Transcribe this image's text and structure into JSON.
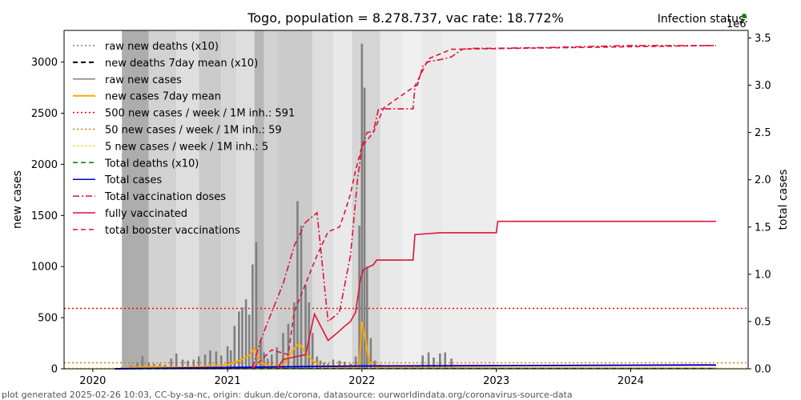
{
  "header": {
    "title": "Togo, population = 8.278.737, vac rate: 18.772%",
    "status_label": "Infection status:",
    "status_color": "#1a7f1a"
  },
  "footer": {
    "text": "plot generated 2025-02-26 10:03, CC-by-sa-nc, origin: dukun.de/corona, datasource: ourworldindata.org/coronavirus-source-data"
  },
  "chart_data": {
    "type": "line",
    "x_axis": {
      "type": "date",
      "ticks": [
        "2020",
        "2021",
        "2022",
        "2023",
        "2024"
      ],
      "xlim": [
        "2019-10-15",
        "2024-11-15"
      ]
    },
    "y_left": {
      "label": "new cases",
      "ylim": [
        0,
        3310
      ],
      "ticks": [
        0,
        500,
        1000,
        1500,
        2000,
        2500,
        3000
      ]
    },
    "y_right": {
      "label": "total cases",
      "multiplier": "1e6",
      "ylim": [
        0,
        3.58
      ],
      "ticks": [
        "0.0",
        "0.5",
        "1.0",
        "1.5",
        "2.0",
        "2.5",
        "3.0",
        "3.5"
      ]
    },
    "legend": {
      "position": "top-left",
      "items": [
        {
          "label": "raw new deaths (x10)",
          "color": "#808080",
          "dash": "dotted"
        },
        {
          "label": "new deaths 7day mean (x10)",
          "color": "#000000",
          "dash": "dashed"
        },
        {
          "label": "raw new cases",
          "color": "#808080",
          "dash": "solid"
        },
        {
          "label": "new cases 7day mean",
          "color": "#ffa500",
          "dash": "solid"
        },
        {
          "label": "500 new cases / week / 1M inh.: 591",
          "color": "#ff0000",
          "dash": "dotted"
        },
        {
          "label": "50 new cases / week / 1M inh.: 59",
          "color": "#e07b00",
          "dash": "dotted"
        },
        {
          "label": "5 new cases / week / 1M inh.: 5",
          "color": "#ffd700",
          "dash": "dotted"
        },
        {
          "label": "Total deaths (x10)",
          "color": "#008000",
          "dash": "dashed"
        },
        {
          "label": "Total cases",
          "color": "#0000cd",
          "dash": "solid"
        },
        {
          "label": "Total vaccination doses",
          "color": "#dc143c",
          "dash": "dashdot"
        },
        {
          "label": "fully vaccinated",
          "color": "#dc143c",
          "dash": "solid"
        },
        {
          "label": "total booster vaccinations",
          "color": "#dc143c",
          "dash": "dashed"
        }
      ]
    },
    "thresholds": [
      591,
      59,
      5
    ],
    "stringency_bands": [
      {
        "start": "2020-03-20",
        "end": "2020-06-01",
        "level": 0.55
      },
      {
        "start": "2020-06-01",
        "end": "2020-08-15",
        "level": 0.3
      },
      {
        "start": "2020-08-15",
        "end": "2020-10-15",
        "level": 0.22
      },
      {
        "start": "2020-10-15",
        "end": "2020-12-15",
        "level": 0.35
      },
      {
        "start": "2020-12-15",
        "end": "2021-01-25",
        "level": 0.28
      },
      {
        "start": "2021-01-25",
        "end": "2021-03-15",
        "level": 0.22
      },
      {
        "start": "2021-03-15",
        "end": "2021-04-10",
        "level": 0.48
      },
      {
        "start": "2021-04-10",
        "end": "2021-05-15",
        "level": 0.3
      },
      {
        "start": "2021-05-15",
        "end": "2021-08-20",
        "level": 0.35
      },
      {
        "start": "2021-08-20",
        "end": "2021-10-15",
        "level": 0.22
      },
      {
        "start": "2021-10-15",
        "end": "2021-12-05",
        "level": 0.15
      },
      {
        "start": "2021-12-05",
        "end": "2022-02-20",
        "level": 0.28
      },
      {
        "start": "2022-02-20",
        "end": "2022-04-20",
        "level": 0.15
      },
      {
        "start": "2022-04-20",
        "end": "2022-06-10",
        "level": 0.1
      },
      {
        "start": "2022-06-10",
        "end": "2022-08-10",
        "level": 0.15
      },
      {
        "start": "2022-08-10",
        "end": "2023-01-01",
        "level": 0.12
      }
    ],
    "series": {
      "raw_new_cases": {
        "x": [
          "2020-03-20",
          "2020-04-15",
          "2020-05-01",
          "2020-05-15",
          "2020-06-01",
          "2020-06-15",
          "2020-07-01",
          "2020-07-15",
          "2020-08-01",
          "2020-08-15",
          "2020-09-01",
          "2020-09-15",
          "2020-10-01",
          "2020-10-15",
          "2020-11-01",
          "2020-11-15",
          "2020-12-01",
          "2020-12-15",
          "2021-01-01",
          "2021-01-10",
          "2021-01-20",
          "2021-02-01",
          "2021-02-10",
          "2021-02-20",
          "2021-03-01",
          "2021-03-10",
          "2021-03-20",
          "2021-04-01",
          "2021-04-10",
          "2021-04-20",
          "2021-05-01",
          "2021-05-15",
          "2021-06-01",
          "2021-06-15",
          "2021-07-01",
          "2021-07-10",
          "2021-07-20",
          "2021-08-01",
          "2021-08-10",
          "2021-08-20",
          "2021-09-01",
          "2021-09-10",
          "2021-09-20",
          "2021-10-01",
          "2021-10-15",
          "2021-11-01",
          "2021-11-15",
          "2021-12-01",
          "2021-12-15",
          "2021-12-25",
          "2022-01-01",
          "2022-01-08",
          "2022-01-15",
          "2022-01-25",
          "2022-02-05",
          "2022-02-20",
          "2022-03-15",
          "2022-04-15",
          "2022-05-15",
          "2022-06-01",
          "2022-06-15",
          "2022-07-01",
          "2022-07-15",
          "2022-08-01",
          "2022-08-15",
          "2022-09-01",
          "2022-10-01"
        ],
        "y": [
          15,
          30,
          60,
          125,
          60,
          50,
          50,
          40,
          100,
          150,
          90,
          80,
          90,
          120,
          140,
          180,
          170,
          130,
          220,
          180,
          420,
          560,
          600,
          680,
          530,
          1020,
          1240,
          280,
          160,
          100,
          140,
          210,
          350,
          440,
          650,
          1640,
          1400,
          820,
          650,
          350,
          120,
          80,
          60,
          50,
          90,
          80,
          70,
          50,
          120,
          1400,
          3180,
          2750,
          1000,
          300,
          80,
          40,
          30,
          20,
          20,
          30,
          130,
          160,
          110,
          150,
          160,
          100,
          10
        ]
      },
      "new_cases_7day_mean": {
        "x": [
          "2020-03-20",
          "2020-06-01",
          "2020-09-01",
          "2020-12-01",
          "2021-01-01",
          "2021-02-01",
          "2021-03-01",
          "2021-03-15",
          "2021-04-01",
          "2021-05-01",
          "2021-06-01",
          "2021-07-01",
          "2021-07-15",
          "2021-08-01",
          "2021-08-20",
          "2021-09-15",
          "2021-12-01",
          "2021-12-25",
          "2022-01-01",
          "2022-01-10",
          "2022-01-20",
          "2022-02-01",
          "2022-03-01",
          "2024-08-20"
        ],
        "y": [
          5,
          20,
          15,
          30,
          40,
          80,
          130,
          200,
          60,
          20,
          40,
          200,
          250,
          150,
          80,
          20,
          10,
          20,
          460,
          300,
          80,
          20,
          10,
          5
        ]
      },
      "total_vaccination_doses": {
        "x": [
          "2021-03-10",
          "2021-04-01",
          "2021-05-01",
          "2021-06-01",
          "2021-07-01",
          "2021-08-01",
          "2021-09-01",
          "2021-10-01",
          "2021-11-01",
          "2021-12-01",
          "2021-12-20",
          "2022-01-01",
          "2022-01-15",
          "2022-02-01",
          "2022-02-15",
          "2022-03-01",
          "2022-04-01",
          "2022-05-01",
          "2022-05-20",
          "2022-05-25",
          "2022-06-01",
          "2022-06-15",
          "2022-07-01",
          "2022-08-01",
          "2022-09-01",
          "2022-10-01",
          "2022-11-01",
          "2023-01-01",
          "2023-06-01",
          "2024-01-01",
          "2024-08-20"
        ],
        "y": [
          0.01,
          0.3,
          0.6,
          0.9,
          1.3,
          1.55,
          1.65,
          0.5,
          0.6,
          1.2,
          2.0,
          2.35,
          2.5,
          2.51,
          2.75,
          2.75,
          2.75,
          2.75,
          2.75,
          2.99,
          3.0,
          3.2,
          3.25,
          3.27,
          3.3,
          3.38,
          3.39,
          3.39,
          3.4,
          3.42,
          3.42
        ]
      },
      "total_booster_vaccinations": {
        "x": [
          "2021-03-10",
          "2021-05-01",
          "2021-06-15",
          "2021-07-01",
          "2021-08-01",
          "2021-09-01",
          "2021-10-01",
          "2021-11-01",
          "2021-11-15",
          "2021-12-01",
          "2021-12-15",
          "2022-01-01",
          "2022-02-01",
          "2022-03-01",
          "2022-05-25",
          "2022-07-01",
          "2022-09-01",
          "2024-08-20"
        ],
        "y": [
          0.0,
          0.2,
          0.15,
          0.6,
          0.9,
          1.2,
          1.45,
          1.5,
          1.65,
          1.85,
          2.1,
          2.35,
          2.5,
          2.76,
          2.99,
          3.28,
          3.38,
          3.42
        ]
      },
      "fully_vaccinated": {
        "x": [
          "2021-05-15",
          "2021-06-01",
          "2021-08-01",
          "2021-08-25",
          "2021-10-01",
          "2021-11-01",
          "2021-11-15",
          "2021-12-01",
          "2021-12-15",
          "2021-12-28",
          "2022-01-05",
          "2022-02-01",
          "2022-02-10",
          "2022-05-20",
          "2022-05-25",
          "2022-07-01",
          "2022-08-01",
          "2023-01-01",
          "2023-01-05",
          "2024-08-20"
        ],
        "y": [
          0.0,
          0.1,
          0.15,
          0.58,
          0.3,
          0.4,
          0.45,
          0.5,
          0.6,
          0.95,
          1.05,
          1.1,
          1.15,
          1.15,
          1.42,
          1.43,
          1.44,
          1.44,
          1.56,
          1.56
        ]
      },
      "total_cases": {
        "x": [
          "2020-03-01",
          "2022-01-01",
          "2024-08-20"
        ],
        "y": [
          0.0,
          0.03,
          0.04
        ]
      },
      "total_deaths_x10": {
        "x": [
          "2020-03-01",
          "2022-01-01",
          "2024-08-20"
        ],
        "y": [
          0.0,
          0.0025,
          0.003
        ]
      }
    }
  }
}
